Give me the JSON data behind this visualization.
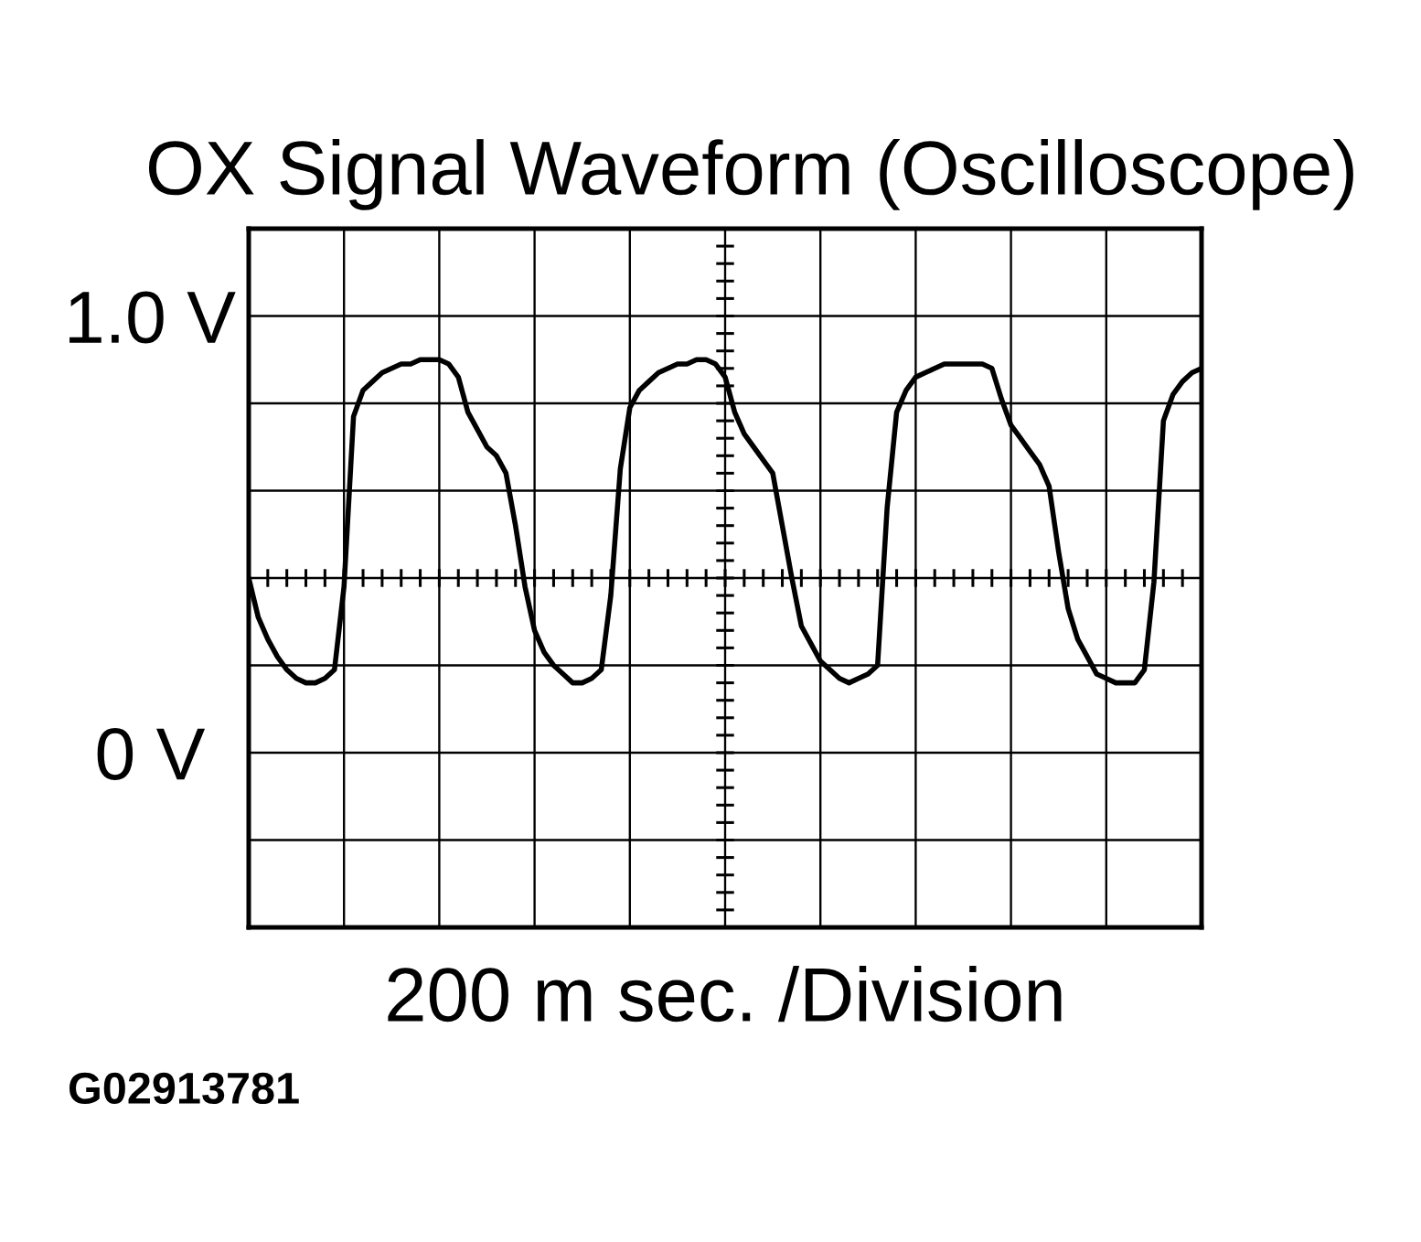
{
  "chart_data": {
    "type": "line",
    "title": "OX Signal Waveform (Oscilloscope)",
    "xlabel": "200 m sec. /Division",
    "annotations": [
      "G02913781"
    ],
    "categories": [
      null,
      null,
      null,
      null,
      null,
      null,
      null,
      null,
      null,
      null,
      null,
      null,
      null,
      null,
      null,
      null,
      null,
      null,
      null,
      null,
      null,
      null,
      null,
      null,
      null,
      null,
      null,
      null,
      null,
      null,
      null,
      null,
      null,
      null,
      null,
      null,
      null,
      null,
      null,
      null,
      null,
      null,
      null,
      null,
      null,
      null,
      null,
      null,
      null,
      null,
      null,
      null,
      null,
      null,
      null,
      null,
      null,
      null,
      null,
      null,
      null,
      null,
      null,
      null,
      null,
      null,
      null,
      null,
      null,
      null,
      null,
      null,
      null,
      null,
      null,
      null,
      null,
      null,
      null,
      null,
      null,
      null,
      null,
      null,
      null,
      null,
      null,
      null,
      null,
      null,
      null,
      null,
      null,
      null,
      null,
      null,
      null,
      null,
      null,
      null,
      null
    ],
    "series": [
      {
        "color": "#000000",
        "values": [
          0.4,
          0.31,
          0.26,
          0.22,
          0.19,
          0.17,
          0.16,
          0.16,
          0.17,
          0.19,
          0.38,
          0.77,
          0.83,
          0.85,
          0.87,
          0.88,
          0.89,
          0.89,
          0.9,
          0.9,
          0.9,
          0.89,
          0.86,
          0.78,
          0.74,
          0.7,
          0.68,
          0.64,
          0.52,
          0.38,
          0.28,
          0.23,
          0.2,
          0.18,
          0.16,
          0.16,
          0.17,
          0.19,
          0.36,
          0.65,
          0.79,
          0.83,
          0.85,
          0.87,
          0.88,
          0.89,
          0.89,
          0.9,
          0.9,
          0.89,
          0.86,
          0.78,
          0.73,
          0.7,
          0.67,
          0.64,
          0.52,
          0.4,
          0.29,
          0.25,
          0.21,
          0.19,
          0.17,
          0.16,
          0.17,
          0.18,
          0.2,
          0.56,
          0.78,
          0.83,
          0.86,
          0.87,
          0.88,
          0.89,
          0.89,
          0.89,
          0.89,
          0.89,
          0.88,
          0.81,
          0.75,
          0.72,
          0.69,
          0.66,
          0.61,
          0.46,
          0.33,
          0.26,
          0.22,
          0.18,
          0.17,
          0.16,
          0.16,
          0.16,
          0.19,
          0.39,
          0.76,
          0.82,
          0.85,
          0.87,
          0.88
        ]
      }
    ],
    "ylim": [
      -0.4,
      1.2
    ],
    "yticks": [
      {
        "value": -0.4,
        "label": null
      },
      {
        "value": -0.2,
        "label": null
      },
      {
        "value": 0,
        "label": "0 V"
      },
      {
        "value": 0.2,
        "label": null
      },
      {
        "value": 0.4,
        "label": null
      },
      {
        "value": 0.6,
        "label": null
      },
      {
        "value": 0.8,
        "label": null
      },
      {
        "value": 1.0,
        "label": "1.0 V"
      },
      {
        "value": 1.2,
        "label": null
      }
    ],
    "tick_labels": "y",
    "grid": true,
    "marker": "none",
    "line_style": "solid"
  }
}
